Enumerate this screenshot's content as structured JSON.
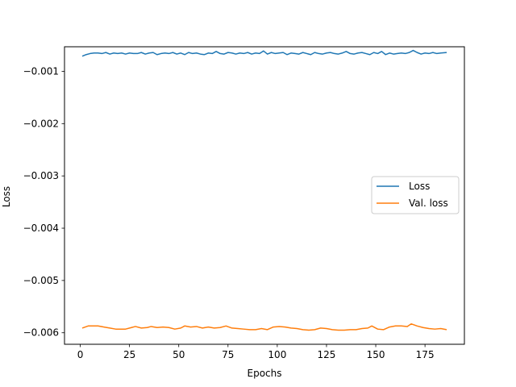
{
  "chart_data": {
    "type": "line",
    "title": "",
    "xlabel": "Epochs",
    "ylabel": "Loss",
    "xlim": [
      -8,
      195
    ],
    "ylim": [
      -0.00622,
      -0.00053
    ],
    "xticks": [
      0,
      25,
      50,
      75,
      100,
      125,
      150,
      175
    ],
    "xtick_labels": [
      "0",
      "25",
      "50",
      "75",
      "100",
      "125",
      "150",
      "175"
    ],
    "yticks": [
      -0.006,
      -0.005,
      -0.004,
      -0.003,
      -0.002,
      -0.001
    ],
    "ytick_labels": [
      "−0.006",
      "−0.005",
      "−0.004",
      "−0.003",
      "−0.002",
      "−0.001"
    ],
    "grid": false,
    "legend_position": "center-right",
    "series": [
      {
        "name": "Loss",
        "color": "#1f77b4",
        "x": [
          1,
          3,
          5,
          7,
          9,
          11,
          13,
          15,
          17,
          19,
          21,
          23,
          25,
          27,
          29,
          31,
          33,
          35,
          37,
          39,
          41,
          43,
          45,
          47,
          49,
          51,
          53,
          55,
          57,
          59,
          61,
          63,
          65,
          67,
          69,
          71,
          73,
          75,
          77,
          79,
          81,
          83,
          85,
          87,
          89,
          91,
          93,
          95,
          97,
          99,
          101,
          103,
          105,
          107,
          109,
          111,
          113,
          115,
          117,
          119,
          121,
          123,
          125,
          127,
          129,
          131,
          133,
          135,
          137,
          139,
          141,
          143,
          145,
          147,
          149,
          151,
          153,
          155,
          157,
          159,
          161,
          163,
          165,
          167,
          169,
          171,
          173,
          175,
          177,
          179,
          181,
          183,
          186
        ],
        "y": [
          -0.00071,
          -0.00068,
          -0.00066,
          -0.00065,
          -0.00065,
          -0.00066,
          -0.00064,
          -0.00067,
          -0.00065,
          -0.00066,
          -0.00065,
          -0.00067,
          -0.00065,
          -0.00066,
          -0.00066,
          -0.00064,
          -0.00067,
          -0.00065,
          -0.00064,
          -0.00068,
          -0.00066,
          -0.00065,
          -0.00066,
          -0.00064,
          -0.00067,
          -0.00065,
          -0.00068,
          -0.00064,
          -0.00066,
          -0.00065,
          -0.00067,
          -0.00068,
          -0.00065,
          -0.00066,
          -0.00062,
          -0.00066,
          -0.00067,
          -0.00064,
          -0.00065,
          -0.00067,
          -0.00065,
          -0.00066,
          -0.00064,
          -0.00067,
          -0.00065,
          -0.00066,
          -0.00061,
          -0.00067,
          -0.00064,
          -0.00066,
          -0.00065,
          -0.00064,
          -0.00068,
          -0.00065,
          -0.00066,
          -0.00067,
          -0.00064,
          -0.00066,
          -0.00068,
          -0.00064,
          -0.00066,
          -0.00067,
          -0.00065,
          -0.00064,
          -0.00066,
          -0.00067,
          -0.00065,
          -0.00062,
          -0.00066,
          -0.00067,
          -0.00065,
          -0.00064,
          -0.00066,
          -0.00068,
          -0.00064,
          -0.00066,
          -0.00062,
          -0.00068,
          -0.00065,
          -0.00067,
          -0.00066,
          -0.00065,
          -0.00066,
          -0.00064,
          -0.0006,
          -0.00064,
          -0.00067,
          -0.00065,
          -0.00066,
          -0.00064,
          -0.00066,
          -0.00065,
          -0.00064
        ]
      },
      {
        "name": "Val. loss",
        "color": "#ff7f0e",
        "x": [
          1,
          4,
          6,
          9,
          12,
          15,
          18,
          21,
          23,
          26,
          28,
          31,
          34,
          36,
          39,
          42,
          45,
          48,
          51,
          53,
          56,
          59,
          62,
          65,
          68,
          71,
          74,
          77,
          80,
          83,
          86,
          89,
          92,
          95,
          98,
          101,
          104,
          107,
          110,
          113,
          116,
          119,
          122,
          125,
          128,
          131,
          134,
          137,
          140,
          143,
          146,
          148,
          151,
          154,
          157,
          160,
          163,
          166,
          168,
          171,
          174,
          177,
          180,
          183,
          186
        ],
        "y": [
          -0.00591,
          -0.00587,
          -0.00587,
          -0.00587,
          -0.00589,
          -0.00591,
          -0.00593,
          -0.00593,
          -0.00593,
          -0.0059,
          -0.00588,
          -0.00591,
          -0.0059,
          -0.00588,
          -0.0059,
          -0.00589,
          -0.0059,
          -0.00593,
          -0.00591,
          -0.00587,
          -0.00589,
          -0.00588,
          -0.00591,
          -0.00589,
          -0.00591,
          -0.0059,
          -0.00587,
          -0.00591,
          -0.00592,
          -0.00593,
          -0.00594,
          -0.00594,
          -0.00592,
          -0.00594,
          -0.00589,
          -0.00588,
          -0.00589,
          -0.00591,
          -0.00592,
          -0.00594,
          -0.00595,
          -0.00594,
          -0.00591,
          -0.00592,
          -0.00594,
          -0.00595,
          -0.00595,
          -0.00594,
          -0.00594,
          -0.00592,
          -0.00591,
          -0.00587,
          -0.00593,
          -0.00594,
          -0.00589,
          -0.00587,
          -0.00587,
          -0.00588,
          -0.00583,
          -0.00587,
          -0.0059,
          -0.00592,
          -0.00593,
          -0.00592,
          -0.00594
        ]
      }
    ]
  }
}
